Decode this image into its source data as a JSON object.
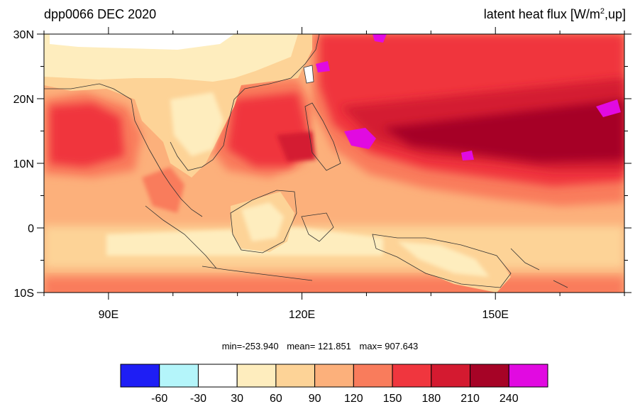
{
  "title": {
    "left": "dpp0066 DEC 2020",
    "right_prefix": "latent heat flux [W/m",
    "right_sup": "2",
    "right_suffix": ",up]"
  },
  "map": {
    "lon_range": [
      80,
      170
    ],
    "lat_range": [
      -10,
      30
    ],
    "lat_ticks": [
      {
        "value": 30,
        "label": "30N"
      },
      {
        "value": 20,
        "label": "20N"
      },
      {
        "value": 10,
        "label": "10N"
      },
      {
        "value": 0,
        "label": "0"
      },
      {
        "value": -10,
        "label": "10S"
      }
    ],
    "lon_ticks": [
      {
        "value": 90,
        "label": "90E"
      },
      {
        "value": 120,
        "label": "120E"
      },
      {
        "value": 150,
        "label": "150E"
      }
    ]
  },
  "stats": {
    "min": "min=-253.940",
    "mean": "mean= 121.851",
    "max": "max= 907.643"
  },
  "colorbar": {
    "colors": [
      "#1e1ef5",
      "#b4f5fa",
      "#ffffff",
      "#feedbe",
      "#fdd397",
      "#fcb07b",
      "#f97c5c",
      "#f0363e",
      "#d41a30",
      "#a60326",
      "#e10ae1"
    ],
    "labels": [
      "-60",
      "-30",
      "30",
      "60",
      "90",
      "120",
      "150",
      "180",
      "210",
      "240"
    ]
  }
}
